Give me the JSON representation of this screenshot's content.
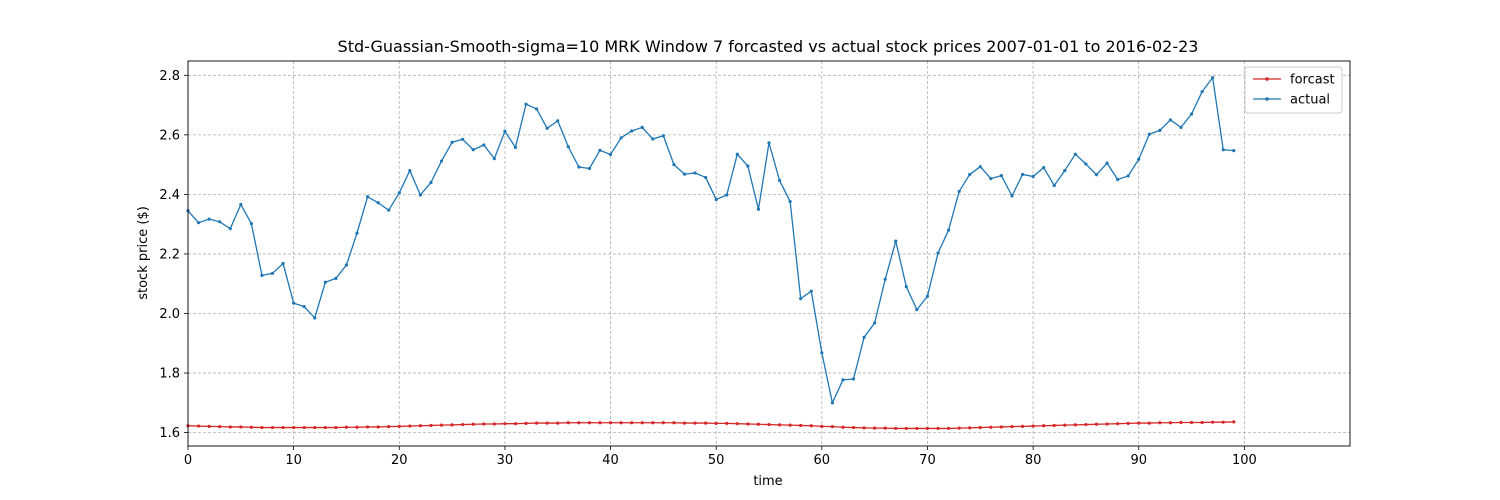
{
  "chart_data": {
    "type": "line",
    "title": "Std-Guassian-Smooth-sigma=10 MRK Window 7 forcasted vs actual stock prices 2007-01-01 to 2016-02-23",
    "xlabel": "time",
    "ylabel": "stock price ($)",
    "xlim": [
      0,
      110
    ],
    "ylim": [
      1.555,
      2.848
    ],
    "xticks": [
      0,
      10,
      20,
      30,
      40,
      50,
      60,
      70,
      80,
      90,
      100
    ],
    "yticks": [
      1.6,
      1.8,
      2.0,
      2.2,
      2.4,
      2.6,
      2.8
    ],
    "xtick_labels": [
      "0",
      "10",
      "20",
      "30",
      "40",
      "50",
      "60",
      "70",
      "80",
      "90",
      "100"
    ],
    "ytick_labels": [
      "1.6",
      "1.8",
      "2.0",
      "2.2",
      "2.4",
      "2.6",
      "2.8"
    ],
    "grid": true,
    "legend_position": "top-right",
    "series": [
      {
        "name": "forcast",
        "color": "#d62728",
        "values": [
          1.623,
          1.622,
          1.621,
          1.62,
          1.619,
          1.619,
          1.618,
          1.617,
          1.617,
          1.617,
          1.617,
          1.617,
          1.617,
          1.617,
          1.617,
          1.618,
          1.618,
          1.619,
          1.619,
          1.62,
          1.621,
          1.622,
          1.623,
          1.624,
          1.625,
          1.626,
          1.627,
          1.628,
          1.629,
          1.629,
          1.63,
          1.63,
          1.631,
          1.632,
          1.632,
          1.632,
          1.633,
          1.633,
          1.633,
          1.633,
          1.633,
          1.633,
          1.633,
          1.633,
          1.633,
          1.633,
          1.633,
          1.632,
          1.632,
          1.632,
          1.631,
          1.631,
          1.63,
          1.629,
          1.628,
          1.627,
          1.626,
          1.625,
          1.624,
          1.623,
          1.621,
          1.62,
          1.618,
          1.617,
          1.616,
          1.615,
          1.615,
          1.614,
          1.614,
          1.614,
          1.614,
          1.614,
          1.614,
          1.615,
          1.616,
          1.617,
          1.618,
          1.619,
          1.62,
          1.621,
          1.622,
          1.623,
          1.624,
          1.625,
          1.626,
          1.627,
          1.628,
          1.629,
          1.63,
          1.631,
          1.632,
          1.632,
          1.633,
          1.633,
          1.634,
          1.634,
          1.634,
          1.635,
          1.635,
          1.636
        ]
      },
      {
        "name": "actual",
        "color": "#1f77b4",
        "values": [
          2.345,
          2.305,
          2.317,
          2.308,
          2.285,
          2.366,
          2.302,
          2.128,
          2.135,
          2.168,
          2.035,
          2.023,
          1.985,
          2.105,
          2.118,
          2.163,
          2.27,
          2.392,
          2.372,
          2.347,
          2.405,
          2.48,
          2.398,
          2.44,
          2.512,
          2.575,
          2.585,
          2.55,
          2.566,
          2.52,
          2.612,
          2.558,
          2.703,
          2.687,
          2.622,
          2.647,
          2.56,
          2.492,
          2.487,
          2.548,
          2.534,
          2.59,
          2.613,
          2.625,
          2.586,
          2.597,
          2.5,
          2.468,
          2.472,
          2.457,
          2.383,
          2.398,
          2.535,
          2.495,
          2.35,
          2.573,
          2.447,
          2.376,
          2.05,
          2.075,
          1.868,
          1.7,
          1.777,
          1.78,
          1.92,
          1.968,
          2.115,
          2.243,
          2.09,
          2.013,
          2.058,
          2.203,
          2.28,
          2.41,
          2.467,
          2.493,
          2.453,
          2.463,
          2.395,
          2.467,
          2.46,
          2.49,
          2.43,
          2.48,
          2.535,
          2.502,
          2.466,
          2.505,
          2.45,
          2.462,
          2.518,
          2.602,
          2.615,
          2.65,
          2.625,
          2.67,
          2.745,
          2.792,
          2.55,
          2.547
        ]
      }
    ]
  }
}
